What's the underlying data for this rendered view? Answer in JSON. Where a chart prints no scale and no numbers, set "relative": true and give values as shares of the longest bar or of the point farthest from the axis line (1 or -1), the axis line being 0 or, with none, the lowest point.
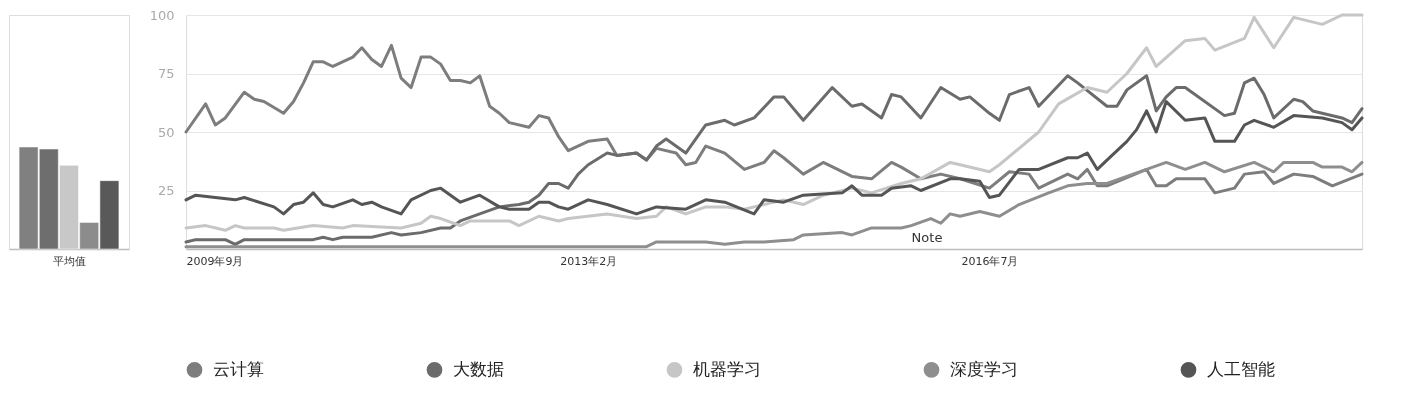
{
  "chart_data": [
    {
      "type": "bar",
      "relative": true,
      "xlabel": "平均值",
      "tick_labels": false,
      "categories": [
        null,
        null,
        null,
        null,
        null
      ],
      "values": [
        1,
        0.98,
        0.82,
        0.26,
        0.67
      ],
      "colors": [
        "#808080",
        "#6e6e6e",
        "#c8c8c8",
        "#8c8c8c",
        "#595959"
      ]
    },
    {
      "type": "line",
      "xlim": [
        "2009-09",
        "2019-09"
      ],
      "ylim": [
        0,
        100
      ],
      "yticks": [
        25,
        50,
        75,
        100
      ],
      "xticks": [
        {
          "value": "2009-09",
          "label": "2009年9月"
        },
        {
          "value": "2013-02",
          "label": "2013年2月"
        },
        {
          "value": "2016-07",
          "label": "2016年7月"
        }
      ],
      "grid": "y",
      "legend": "bottom",
      "line_style": "solid",
      "annotations": [
        "Note"
      ],
      "series": [
        {
          "name": "云计算",
          "color": "#7d7d7d",
          "x": [
            "2009-09",
            "2009-11",
            "2009-12",
            "2010-01",
            "2010-03",
            "2010-04",
            "2010-05",
            "2010-07",
            "2010-08",
            "2010-09",
            "2010-10",
            "2010-11",
            "2010-12",
            "2011-02",
            "2011-03",
            "2011-04",
            "2011-05",
            "2011-06",
            "2011-07",
            "2011-08",
            "2011-09",
            "2011-10",
            "2011-11",
            "2011-12",
            "2012-01",
            "2012-02",
            "2012-03",
            "2012-04",
            "2012-05",
            "2012-06",
            "2012-08",
            "2012-09",
            "2012-10",
            "2012-11",
            "2012-12",
            "2013-02",
            "2013-04",
            "2013-05",
            "2013-07",
            "2013-08",
            "2013-09",
            "2013-11",
            "2013-12",
            "2014-01",
            "2014-02",
            "2014-04",
            "2014-06",
            "2014-08",
            "2014-09",
            "2014-10",
            "2014-12",
            "2015-02",
            "2015-05",
            "2015-07",
            "2015-09",
            "2015-10",
            "2015-12",
            "2016-02",
            "2016-04",
            "2016-07",
            "2016-09",
            "2016-11",
            "2016-12",
            "2017-03",
            "2017-04",
            "2017-05",
            "2017-06",
            "2017-07",
            "2017-11",
            "2017-12",
            "2018-01",
            "2018-02",
            "2018-05",
            "2018-06",
            "2018-08",
            "2018-09",
            "2018-11",
            "2018-12",
            "2019-02",
            "2019-04",
            "2019-06",
            "2019-09"
          ],
          "values": [
            50,
            62,
            53,
            56,
            67,
            64,
            63,
            58,
            63,
            71,
            80,
            80,
            78,
            82,
            86,
            81,
            78,
            87,
            73,
            69,
            82,
            82,
            79,
            72,
            72,
            71,
            74,
            61,
            58,
            54,
            52,
            57,
            56,
            48,
            42,
            46,
            47,
            40,
            41,
            38,
            43,
            41,
            36,
            37,
            44,
            41,
            34,
            37,
            42,
            39,
            32,
            37,
            31,
            30,
            37,
            35,
            30,
            32,
            30,
            26,
            33,
            32,
            26,
            32,
            30,
            34,
            27,
            27,
            34,
            27,
            27,
            30,
            30,
            24,
            26,
            32,
            33,
            28,
            32,
            31,
            27,
            32
          ]
        },
        {
          "name": "大数据",
          "color": "#6b6b6b",
          "x": [
            "2009-09",
            "2009-10",
            "2010-01",
            "2010-02",
            "2010-03",
            "2010-10",
            "2010-11",
            "2010-12",
            "2011-01",
            "2011-04",
            "2011-06",
            "2011-07",
            "2011-09",
            "2011-11",
            "2011-12",
            "2012-01",
            "2012-03",
            "2012-05",
            "2012-07",
            "2012-08",
            "2012-09",
            "2012-10",
            "2012-11",
            "2012-12",
            "2013-01",
            "2013-02",
            "2013-04",
            "2013-05",
            "2013-07",
            "2013-08",
            "2013-09",
            "2013-10",
            "2013-12",
            "2014-02",
            "2014-04",
            "2014-05",
            "2014-07",
            "2014-09",
            "2014-10",
            "2014-12",
            "2015-03",
            "2015-05",
            "2015-06",
            "2015-08",
            "2015-09",
            "2015-10",
            "2015-12",
            "2016-02",
            "2016-04",
            "2016-05",
            "2016-07",
            "2016-08",
            "2016-09",
            "2016-11",
            "2016-12",
            "2017-03",
            "2017-04",
            "2017-07",
            "2017-08",
            "2017-09",
            "2017-11",
            "2017-12",
            "2018-01",
            "2018-02",
            "2018-03",
            "2018-07",
            "2018-08",
            "2018-09",
            "2018-10",
            "2018-11",
            "2018-12",
            "2019-02",
            "2019-03",
            "2019-04",
            "2019-07",
            "2019-08",
            "2019-09"
          ],
          "values": [
            3,
            4,
            4,
            2,
            4,
            4,
            5,
            4,
            5,
            5,
            7,
            6,
            7,
            9,
            9,
            12,
            15,
            18,
            19,
            20,
            23,
            28,
            28,
            26,
            32,
            36,
            41,
            40,
            41,
            38,
            44,
            47,
            41,
            53,
            55,
            53,
            56,
            65,
            65,
            55,
            69,
            61,
            62,
            56,
            66,
            65,
            56,
            69,
            64,
            65,
            58,
            55,
            66,
            69,
            61,
            74,
            71,
            61,
            61,
            68,
            74,
            59,
            65,
            69,
            69,
            57,
            58,
            71,
            73,
            66,
            56,
            64,
            63,
            59,
            56,
            54,
            60
          ]
        },
        {
          "name": "机器学习",
          "color": "#c6c6c6",
          "x": [
            "2009-09",
            "2009-11",
            "2010-01",
            "2010-02",
            "2010-03",
            "2010-06",
            "2010-07",
            "2010-10",
            "2011-01",
            "2011-02",
            "2011-07",
            "2011-09",
            "2011-10",
            "2011-11",
            "2012-01",
            "2012-02",
            "2012-06",
            "2012-07",
            "2012-09",
            "2012-11",
            "2012-12",
            "2013-04",
            "2013-07",
            "2013-09",
            "2013-10",
            "2013-12",
            "2014-02",
            "2014-04",
            "2014-06",
            "2014-10",
            "2014-12",
            "2015-02",
            "2015-05",
            "2015-07",
            "2015-10",
            "2015-12",
            "2016-03",
            "2016-04",
            "2016-07",
            "2016-08",
            "2016-12",
            "2017-02",
            "2017-05",
            "2017-07",
            "2017-09",
            "2017-11",
            "2017-12",
            "2018-03",
            "2018-05",
            "2018-06",
            "2018-09",
            "2018-10",
            "2018-12",
            "2019-02",
            "2019-05",
            "2019-07",
            "2019-09"
          ],
          "values": [
            9,
            10,
            8,
            10,
            9,
            9,
            8,
            10,
            9,
            10,
            9,
            11,
            14,
            13,
            10,
            12,
            12,
            10,
            14,
            12,
            13,
            15,
            13,
            14,
            18,
            15,
            18,
            18,
            17,
            21,
            19,
            23,
            26,
            24,
            28,
            30,
            37,
            36,
            33,
            36,
            50,
            62,
            69,
            67,
            75,
            86,
            78,
            89,
            90,
            85,
            90,
            99,
            86,
            99,
            96,
            100,
            100
          ]
        },
        {
          "name": "深度学习",
          "color": "#8e8e8e",
          "x": [
            "2009-09",
            "2011-05",
            "2012-11",
            "2013-03",
            "2013-08",
            "2013-09",
            "2014-02",
            "2014-04",
            "2014-06",
            "2014-08",
            "2014-11",
            "2014-12",
            "2015-04",
            "2015-05",
            "2015-07",
            "2015-10",
            "2015-11",
            "2016-01",
            "2016-02",
            "2016-03",
            "2016-04",
            "2016-06",
            "2016-08",
            "2016-10",
            "2017-01",
            "2017-03",
            "2017-05",
            "2017-07",
            "2017-11",
            "2018-01",
            "2018-03",
            "2018-05",
            "2018-07",
            "2018-10",
            "2018-12",
            "2019-01",
            "2019-04",
            "2019-05",
            "2019-07",
            "2019-08",
            "2019-09"
          ],
          "values": [
            1,
            1,
            1,
            1,
            1,
            3,
            3,
            2,
            3,
            3,
            4,
            6,
            7,
            6,
            9,
            9,
            10,
            13,
            11,
            15,
            14,
            16,
            14,
            19,
            24,
            27,
            28,
            28,
            34,
            37,
            34,
            37,
            33,
            37,
            33,
            37,
            37,
            35,
            35,
            33,
            37
          ]
        },
        {
          "name": "人工智能",
          "color": "#555555",
          "x": [
            "2009-09",
            "2009-10",
            "2009-12",
            "2010-02",
            "2010-03",
            "2010-06",
            "2010-07",
            "2010-08",
            "2010-09",
            "2010-10",
            "2010-11",
            "2010-12",
            "2011-02",
            "2011-03",
            "2011-04",
            "2011-05",
            "2011-07",
            "2011-08",
            "2011-10",
            "2011-11",
            "2012-01",
            "2012-03",
            "2012-05",
            "2012-06",
            "2012-08",
            "2012-09",
            "2012-10",
            "2012-11",
            "2012-12",
            "2013-02",
            "2013-04",
            "2013-07",
            "2013-09",
            "2013-12",
            "2014-02",
            "2014-04",
            "2014-07",
            "2014-08",
            "2014-10",
            "2014-12",
            "2015-04",
            "2015-05",
            "2015-06",
            "2015-08",
            "2015-09",
            "2015-11",
            "2015-12",
            "2016-03",
            "2016-04",
            "2016-06",
            "2016-07",
            "2016-08",
            "2016-10",
            "2016-12",
            "2017-03",
            "2017-04",
            "2017-05",
            "2017-06",
            "2017-07",
            "2017-09",
            "2017-10",
            "2017-11",
            "2017-12",
            "2018-01",
            "2018-03",
            "2018-05",
            "2018-06",
            "2018-08",
            "2018-09",
            "2018-10",
            "2018-12",
            "2019-02",
            "2019-05",
            "2019-07",
            "2019-08",
            "2019-09"
          ],
          "values": [
            21,
            23,
            22,
            21,
            22,
            18,
            15,
            19,
            20,
            24,
            19,
            18,
            21,
            19,
            20,
            18,
            15,
            21,
            25,
            26,
            20,
            23,
            18,
            17,
            17,
            20,
            20,
            18,
            17,
            21,
            19,
            15,
            18,
            17,
            21,
            20,
            15,
            21,
            20,
            23,
            24,
            27,
            23,
            23,
            26,
            27,
            25,
            30,
            30,
            29,
            22,
            23,
            34,
            34,
            39,
            39,
            41,
            34,
            38,
            46,
            51,
            59,
            50,
            63,
            55,
            56,
            46,
            46,
            53,
            55,
            52,
            57,
            56,
            54,
            51,
            56
          ]
        }
      ]
    }
  ]
}
